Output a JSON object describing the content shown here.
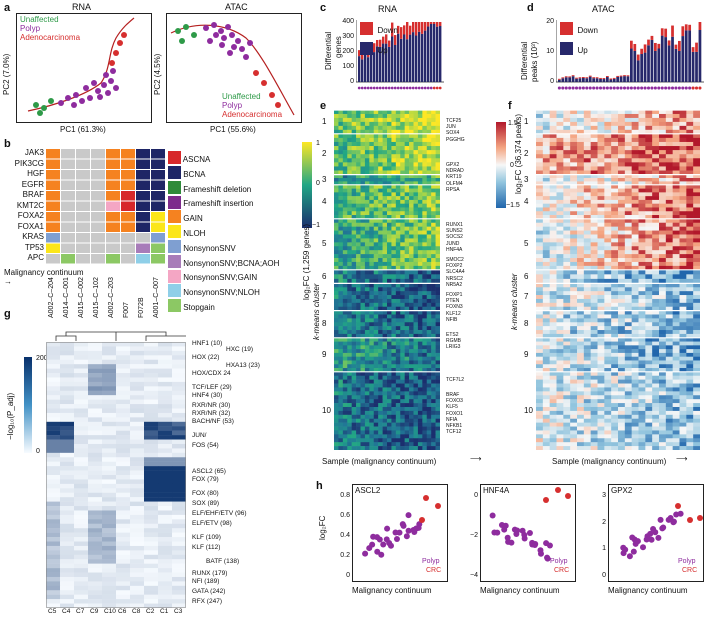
{
  "panels": {
    "a": "a",
    "b": "b",
    "c": "c",
    "d": "d",
    "e": "e",
    "f": "f",
    "g": "g",
    "h": "h"
  },
  "a": {
    "rna": {
      "title": "RNA",
      "xlabel": "PC1 (61.3%)",
      "ylabel": "PC2 (7.0%)",
      "legend": [
        "Unaffected",
        "Polyp",
        "Adenocarcinoma"
      ]
    },
    "atac": {
      "title": "ATAC",
      "xlabel": "PC1 (55.6%)",
      "ylabel": "PC2 (4.5%)",
      "legend": [
        "Unaffected",
        "Polyp",
        "Adenocarcinoma"
      ]
    },
    "colors": {
      "unaffected": "#2e9a48",
      "polyp": "#8e2c9e",
      "adeno": "#d62f2f"
    }
  },
  "b": {
    "genes": [
      "JAK3",
      "PIK3CG",
      "HGF",
      "EGFR",
      "BRAF",
      "KMT2C",
      "FOXA2",
      "FOXA1",
      "KRAS",
      "TP53",
      "APC"
    ],
    "samples": [
      "A002–C–204",
      "A014–C–001",
      "A015–C–002",
      "A015–C–102",
      "A002–C–203",
      "F007",
      "F072B",
      "A001–C–007"
    ],
    "axis_label": "Malignancy continuum",
    "legend": [
      {
        "label": "ASCNA",
        "color": "#d7282a"
      },
      {
        "label": "BCNA",
        "color": "#1e2566"
      },
      {
        "label": "Frameshift deletion",
        "color": "#2f8a3a"
      },
      {
        "label": "Frameshift insertion",
        "color": "#7d2b8c"
      },
      {
        "label": "GAIN",
        "color": "#f58220"
      },
      {
        "label": "NLOH",
        "color": "#fbe619"
      },
      {
        "label": "NonsynonSNV",
        "color": "#7f9fd1"
      },
      {
        "label": "NonsynonSNV;BCNA;AOH",
        "color": "#a87cb9"
      },
      {
        "label": "NonsynonSNV;GAIN",
        "color": "#f4a6c4"
      },
      {
        "label": "NonsynonSNV;NLOH",
        "color": "#8fcfe8"
      },
      {
        "label": "Stopgain",
        "color": "#8cc864"
      }
    ]
  },
  "c": {
    "title": "RNA",
    "ylabel1": "Differential",
    "ylabel2": "genes",
    "legend": [
      "Down",
      "Up"
    ],
    "yticks": [
      "400",
      "300",
      "200",
      "100",
      "0"
    ]
  },
  "d": {
    "title": "ATAC",
    "ylabel1": "Differential",
    "ylabel2": "peaks (10³)",
    "legend": [
      "Down",
      "Up"
    ],
    "yticks": [
      "20",
      "10",
      "0"
    ]
  },
  "e": {
    "ylabel": "log₂FC (1,259 genes)",
    "cluster_label": "k-means cluster",
    "scale": [
      "1",
      "0",
      "−1"
    ],
    "clusters": [
      "1",
      "2",
      "3",
      "4",
      "5",
      "6",
      "7",
      "8",
      "9",
      "10"
    ],
    "genes": [
      [
        "TCF25",
        "JUN",
        "SOX4",
        "PGGHG"
      ],
      [
        "GPX2",
        "NDRAD",
        "KRT19",
        "OLFM4",
        "RPSA"
      ],
      [
        "RUNX1",
        "SUNS2",
        "SOCS2",
        "JUND",
        "HNF4A"
      ],
      [
        "SMOC2",
        "FOXP2",
        "SLC4A4",
        "NRSC2",
        "NR5A2"
      ],
      [
        "FOXP1",
        "PTEN",
        "FOXN3",
        "KLF12",
        "NFIB"
      ],
      [
        "ETS2",
        "RGMB",
        "LRIG3"
      ],
      [
        "TCF7L2"
      ],
      [
        "BRAF",
        "FOXO3",
        "KLF5",
        "FOXO1",
        "NFIA",
        "NFKB1",
        "TCF12"
      ]
    ],
    "xlabel": "Sample (malignancy continuum)"
  },
  "f": {
    "ylabel": "log₂FC (36,374 peaks)",
    "cluster_label": "k-means cluster",
    "scale": [
      "1.5",
      "0",
      "−1.5"
    ],
    "clusters": [
      "1",
      "2",
      "3",
      "4",
      "5",
      "6",
      "7",
      "8",
      "9",
      "10"
    ],
    "xlabel": "Sample (malignancy continuum)"
  },
  "g": {
    "scale_label": "−log₁₀(P_adj)",
    "scale": [
      "200",
      "0"
    ],
    "motifs": [
      "HNF1 (10)",
      "HXC (19)",
      "HOX (22)",
      "HXA13 (23)",
      "HOX/CDX 24",
      "TCF/LEF (29)",
      "HNF4 (30)",
      "RXR/NR (30)",
      "RXR/NR (32)",
      "BACH/NF (53)",
      "JUN/",
      "FOS (54)",
      "ASCL2 (65)",
      "FOX (79)",
      "FOX (80)",
      "SOX (89)",
      "ELF/EHF/ETV (96)",
      "ELF/ETV (98)",
      "KLF (109)",
      "KLF (112)",
      "BATF (138)",
      "RUNX (179)",
      "NFI (189)",
      "GATA (242)",
      "RFX (247)"
    ],
    "cols": [
      "C5",
      "C4",
      "C7",
      "C9",
      "C10",
      "C6",
      "C8",
      "C2",
      "C1",
      "C3"
    ]
  },
  "h": {
    "ylabel": "log₂FC",
    "xlabel": "Malignancy continuum",
    "plots": [
      {
        "title": "ASCL2",
        "yticks": [
          "0.8",
          "0.6",
          "0.4",
          "0.2",
          "0"
        ],
        "legend": [
          "Polyp",
          "CRC"
        ]
      },
      {
        "title": "HNF4A",
        "yticks": [
          "0",
          "−2",
          "−4"
        ],
        "legend": [
          "Polyp",
          "CRC"
        ]
      },
      {
        "title": "GPX2",
        "yticks": [
          "3",
          "2",
          "1",
          "0"
        ],
        "legend": [
          "Polyp",
          "CRC"
        ]
      }
    ]
  }
}
